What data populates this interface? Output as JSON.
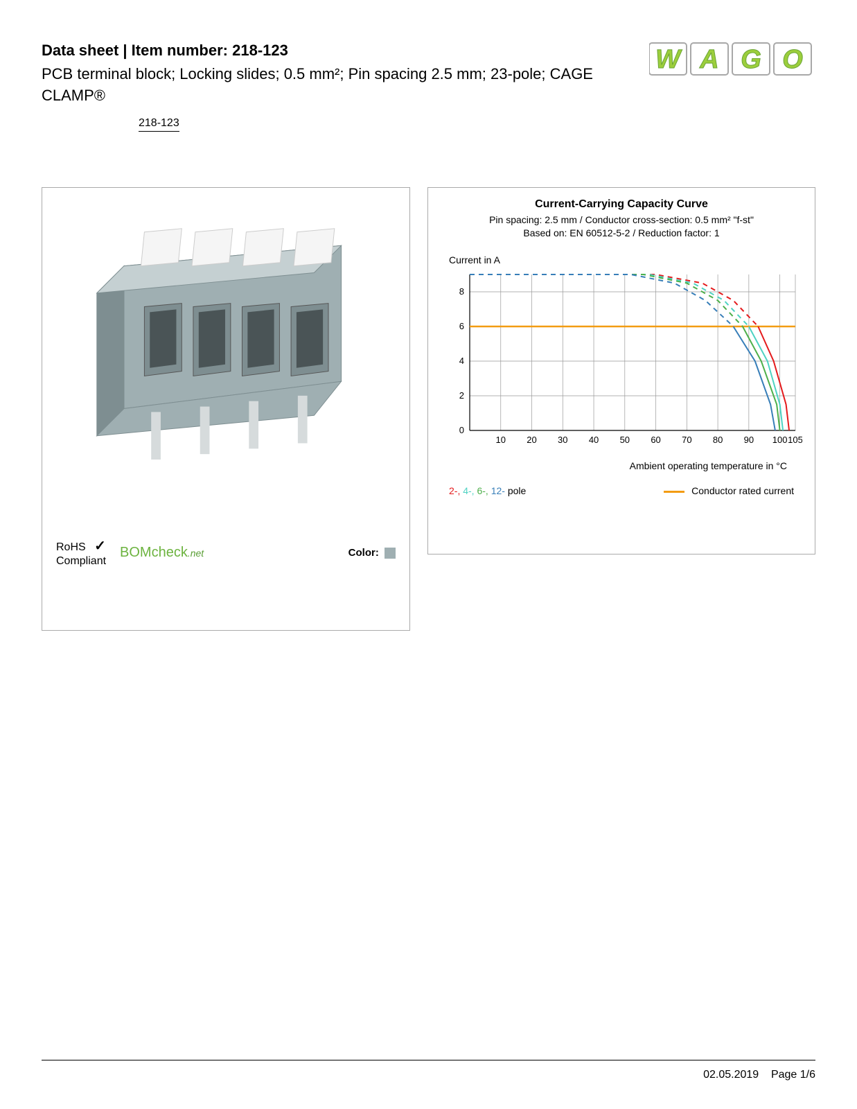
{
  "header": {
    "title": "Data sheet  |  Item number: 218-123",
    "subtitle": "PCB terminal block; Locking slides; 0.5 mm²; Pin spacing 2.5 mm; 23-pole; CAGE CLAMP®",
    "item_label": "218-123"
  },
  "logo": {
    "text": "WAGO",
    "fill_top": "#9cce3c",
    "fill_bottom": "#6aa535",
    "border": "#a8a8a8"
  },
  "product": {
    "body_color": "#9fafb2",
    "body_light": "#c5d0d2",
    "body_dark": "#7e8e91",
    "lever_color": "#f5f5f5",
    "pin_color": "#d6dbdc"
  },
  "compliance": {
    "rohs_line1": "RoHS",
    "rohs_line2": "Compliant",
    "bomcheck_main": "BOMcheck",
    "bomcheck_suffix": ".net",
    "color_label": "Color:",
    "color_swatch": "#9fafb2"
  },
  "chart": {
    "title": "Current-Carrying Capacity Curve",
    "sub1": "Pin spacing: 2.5 mm / Conductor cross-section: 0.5 mm² \"f-st\"",
    "sub2": "Based on: EN 60512-5-2 / Reduction factor: 1",
    "ylabel": "Current in A",
    "xlabel": "Ambient operating temperature in °C",
    "xlim": [
      0,
      105
    ],
    "ylim": [
      0,
      9
    ],
    "yticks": [
      0,
      2,
      4,
      6,
      8
    ],
    "xticks": [
      0,
      10,
      20,
      30,
      40,
      50,
      60,
      70,
      80,
      90,
      100,
      105
    ],
    "grid_color": "#999999",
    "bg_color": "#ffffff",
    "rated_current": 6,
    "rated_color": "#f39c12",
    "series": [
      {
        "name": "2-pole",
        "color": "#e41a1c",
        "data": [
          [
            0,
            9
          ],
          [
            60,
            9
          ],
          [
            75,
            8.5
          ],
          [
            85,
            7.5
          ],
          [
            93,
            6
          ],
          [
            98,
            4
          ],
          [
            102,
            1.5
          ],
          [
            103,
            0
          ]
        ]
      },
      {
        "name": "4-pole",
        "color": "#4dd2c2",
        "data": [
          [
            0,
            9
          ],
          [
            58,
            9
          ],
          [
            72,
            8.5
          ],
          [
            82,
            7.5
          ],
          [
            90,
            6
          ],
          [
            96,
            4
          ],
          [
            100,
            1.5
          ],
          [
            101,
            0
          ]
        ]
      },
      {
        "name": "6-pole",
        "color": "#4daf4a",
        "data": [
          [
            0,
            9
          ],
          [
            56,
            9
          ],
          [
            70,
            8.5
          ],
          [
            80,
            7.5
          ],
          [
            88,
            6
          ],
          [
            94,
            4
          ],
          [
            99,
            1.5
          ],
          [
            100,
            0
          ]
        ]
      },
      {
        "name": "12-pole",
        "color": "#377eb8",
        "data": [
          [
            0,
            9
          ],
          [
            52,
            9
          ],
          [
            66,
            8.5
          ],
          [
            76,
            7.5
          ],
          [
            85,
            6
          ],
          [
            92,
            4
          ],
          [
            97,
            1.5
          ],
          [
            98.5,
            0
          ]
        ]
      }
    ],
    "legend_poles_text": [
      " pole"
    ],
    "legend_each": [
      {
        "label": "2-,",
        "color": "#e41a1c"
      },
      {
        "label": " 4-,",
        "color": "#4dd2c2"
      },
      {
        "label": " 6-,",
        "color": "#4daf4a"
      },
      {
        "label": " 12-",
        "color": "#377eb8"
      }
    ],
    "legend_rated": "Conductor rated current"
  },
  "footer": {
    "date": "02.05.2019",
    "page": "Page 1/6"
  }
}
